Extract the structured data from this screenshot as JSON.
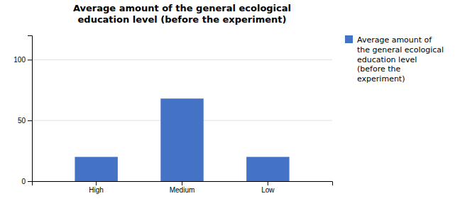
{
  "chart_data": {
    "type": "bar",
    "title": "Average amount of the general ecological\neducation level (before the experiment)",
    "categories": [
      "High",
      "Medium",
      "Low"
    ],
    "series": [
      {
        "name": "Average amount of\nthe general ecological\neducation level\n(before the\nexperiment)",
        "color": "#4472C4",
        "values": [
          20,
          68,
          20
        ]
      }
    ],
    "ylim": [
      0,
      120
    ],
    "yticks": [
      0,
      50,
      100
    ],
    "grid": true,
    "legend": "right"
  }
}
